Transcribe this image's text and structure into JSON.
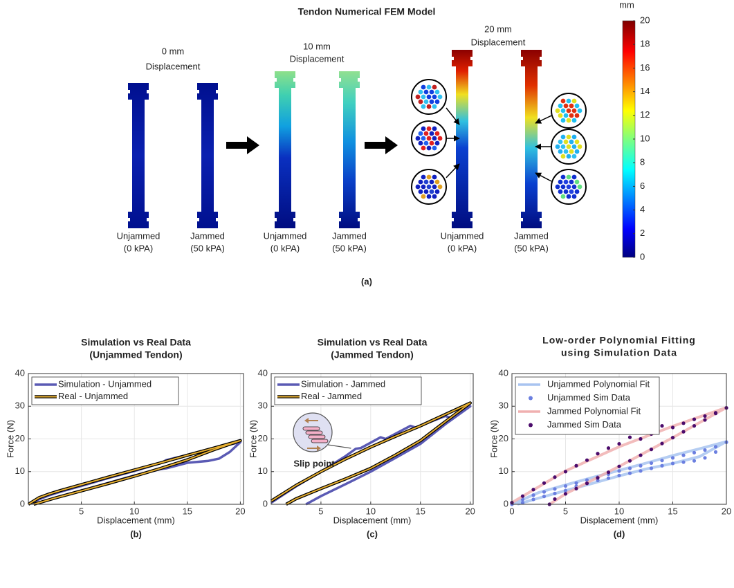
{
  "panel_a": {
    "title": "Tendon Numerical FEM Model",
    "groups": [
      {
        "heading": [
          "0 mm",
          "Displacement"
        ],
        "tendons": [
          [
            "Unjammed",
            "(0 kPA)"
          ],
          [
            "Jammed",
            "(50 kPA)"
          ]
        ]
      },
      {
        "heading": [
          "10 mm",
          "Displacement"
        ],
        "tendons": [
          [
            "Unjammed",
            "(0 kPA)"
          ],
          [
            "Jammed",
            "(50 kPA)"
          ]
        ]
      },
      {
        "heading": [
          "20 mm",
          "Displacement"
        ],
        "tendons": [
          [
            "Unjammed",
            "(0 kPA)"
          ],
          [
            "Jammed",
            "(50 kPA)"
          ]
        ]
      }
    ],
    "colorbar": {
      "unit": "mm",
      "clim": [
        0,
        20
      ],
      "ticks": [
        0,
        2,
        4,
        6,
        8,
        10,
        12,
        14,
        16,
        18,
        20
      ]
    },
    "caption": "(a)"
  },
  "chart_data": [
    {
      "type": "line",
      "title": [
        "Simulation vs Real Data",
        "(Unjammed Tendon)"
      ],
      "xlabel": "Displacement (mm)",
      "ylabel": "Force (N)",
      "caption": "(b)",
      "xlim": [
        0,
        20.3
      ],
      "ylim": [
        0,
        40
      ],
      "xticks": [
        5,
        10,
        15,
        20
      ],
      "yticks": [
        0,
        10,
        20,
        30,
        40
      ],
      "grid": true,
      "legend": "upper left",
      "series": [
        {
          "name": "Simulation - Unjammed",
          "color": "#5a5ab4",
          "x": [
            0,
            1,
            2,
            3,
            5,
            7.5,
            10,
            12.5,
            13,
            15,
            17.5,
            19,
            20,
            19,
            18,
            17,
            15,
            13,
            12.5,
            10,
            7.5,
            5,
            2.5,
            0.5
          ],
          "values": [
            0,
            1.5,
            2.8,
            3.8,
            5.6,
            8,
            10.2,
            12.6,
            13.5,
            15.1,
            17,
            18.3,
            19,
            16,
            14,
            13.3,
            12.7,
            11,
            10.8,
            8.8,
            6.5,
            4.2,
            2,
            0
          ]
        },
        {
          "name": "Real - Unjammed",
          "color": "#e8b030",
          "outline": "#000000",
          "x": [
            0,
            1,
            2,
            3,
            5,
            7.5,
            10,
            12.5,
            15,
            17.5,
            20,
            17.5,
            15,
            12.5,
            10,
            7.5,
            5,
            2.5,
            0.5
          ],
          "values": [
            0,
            2,
            3.2,
            4.2,
            6,
            8.3,
            10.5,
            12.7,
            15,
            17.2,
            19.5,
            16.7,
            13.6,
            11,
            8.6,
            6.3,
            4.1,
            1.9,
            0
          ]
        }
      ]
    },
    {
      "type": "line",
      "title": [
        "Simulation vs Real Data",
        "(Jammed Tendon)"
      ],
      "xlabel": "Displacement (mm)",
      "ylabel": "Force (N)",
      "caption": "(c)",
      "xlim": [
        0,
        20.3
      ],
      "ylim": [
        0,
        40
      ],
      "xticks": [
        5,
        10,
        15,
        20
      ],
      "yticks": [
        0,
        10,
        20,
        30,
        40
      ],
      "grid": true,
      "legend": "upper left",
      "annotation": "Slip point",
      "series": [
        {
          "name": "Simulation - Jammed",
          "color": "#5a5ab4",
          "x": [
            0,
            2.5,
            5,
            7.5,
            8.5,
            9,
            11,
            11.5,
            14,
            14.5,
            17.5,
            18,
            20,
            17.5,
            15,
            12.5,
            10,
            7.5,
            5,
            3.5
          ],
          "values": [
            0.5,
            5.5,
            10,
            14.8,
            17,
            17.2,
            20.5,
            20,
            24,
            23.5,
            27,
            26.5,
            30,
            24.5,
            18.5,
            14.2,
            10,
            6.2,
            2.5,
            0
          ]
        },
        {
          "name": "Real - Jammed",
          "color": "#e8b030",
          "outline": "#000000",
          "x": [
            0,
            2.5,
            5,
            7.5,
            10,
            12.5,
            15,
            17.5,
            20,
            17.5,
            15,
            12.5,
            10,
            7.5,
            5,
            2.5,
            1.5
          ],
          "values": [
            1,
            5.8,
            10,
            13.9,
            17.5,
            20.8,
            24,
            27.5,
            31,
            25.3,
            19.5,
            15.1,
            11,
            7.8,
            4.8,
            1.7,
            0
          ]
        }
      ]
    },
    {
      "type": "line",
      "title": [
        "Low-order Polynomial Fitting",
        "using Simulation Data"
      ],
      "xlabel": "Displacement (mm)",
      "ylabel": "Force (N)",
      "caption": "(d)",
      "xlim": [
        0,
        20
      ],
      "ylim": [
        0,
        40
      ],
      "xticks": [
        0,
        5,
        10,
        15,
        20
      ],
      "yticks": [
        0,
        10,
        20,
        30,
        40
      ],
      "grid": true,
      "legend": "upper left",
      "series": [
        {
          "name": "Unjammed Polynomial Fit",
          "color": "#a8c4f0",
          "x": [
            0,
            2.5,
            5,
            7.5,
            10,
            12.5,
            15,
            17.5,
            20,
            17.5,
            15,
            12.5,
            10,
            7.5,
            5,
            2.5,
            0.5
          ],
          "values": [
            0,
            3.6,
            5.9,
            8.2,
            10.4,
            12.6,
            14.9,
            17,
            19.2,
            14.6,
            12.5,
            10.8,
            8.7,
            6.4,
            4.2,
            1.9,
            0
          ]
        },
        {
          "name": "Unjammed Sim Data",
          "color": "#6b7fe0",
          "marker": true,
          "x": [
            0,
            1,
            2,
            3,
            4,
            5,
            6,
            7,
            8,
            9,
            10,
            11,
            12,
            13,
            14,
            15,
            16,
            17,
            18,
            19,
            20,
            19,
            18,
            17,
            16,
            15,
            14,
            13,
            12,
            11,
            10,
            9,
            8,
            7,
            6,
            5,
            4,
            3,
            2,
            1
          ],
          "values": [
            0,
            1.5,
            2.8,
            3.8,
            4.7,
            5.6,
            6.5,
            7.4,
            8.3,
            9.2,
            10.2,
            11,
            11.8,
            12.6,
            13.4,
            14.2,
            15,
            15.8,
            16.6,
            17.6,
            19,
            16,
            14.2,
            13.3,
            12.9,
            12.5,
            11.8,
            11,
            10.2,
            9.5,
            8.8,
            8,
            7.3,
            6.5,
            5.5,
            4.2,
            3.3,
            2.4,
            1.5,
            0.5
          ]
        },
        {
          "name": "Jammed Polynomial Fit",
          "color": "#f0b0b0",
          "x": [
            0,
            5,
            10,
            15,
            20,
            15,
            10,
            5,
            3.5
          ],
          "values": [
            0.5,
            10.2,
            17.6,
            23.9,
            29.6,
            20.4,
            11.6,
            3.2,
            0
          ]
        },
        {
          "name": "Jammed Sim Data",
          "color": "#4b0b6b",
          "marker": true,
          "x": [
            0,
            1,
            2,
            3,
            4,
            5,
            6,
            7,
            8,
            9,
            10,
            11,
            12,
            13,
            14,
            15,
            16,
            17,
            18,
            19,
            20,
            19,
            18,
            17,
            16,
            15,
            14,
            13,
            12,
            11,
            10,
            9,
            8,
            7,
            6,
            5,
            4,
            3.5
          ],
          "values": [
            0.5,
            2.5,
            4.5,
            6.5,
            8.3,
            10,
            11.8,
            13.5,
            15.5,
            17.2,
            18.5,
            20.5,
            20,
            21.5,
            24,
            23.5,
            24.8,
            26,
            27,
            28,
            29.5,
            27.8,
            25.8,
            24,
            22.2,
            20.4,
            18.6,
            16.8,
            15,
            13.3,
            11.6,
            9.8,
            8.1,
            6.4,
            4.8,
            3.2,
            1.6,
            0
          ]
        }
      ]
    }
  ]
}
